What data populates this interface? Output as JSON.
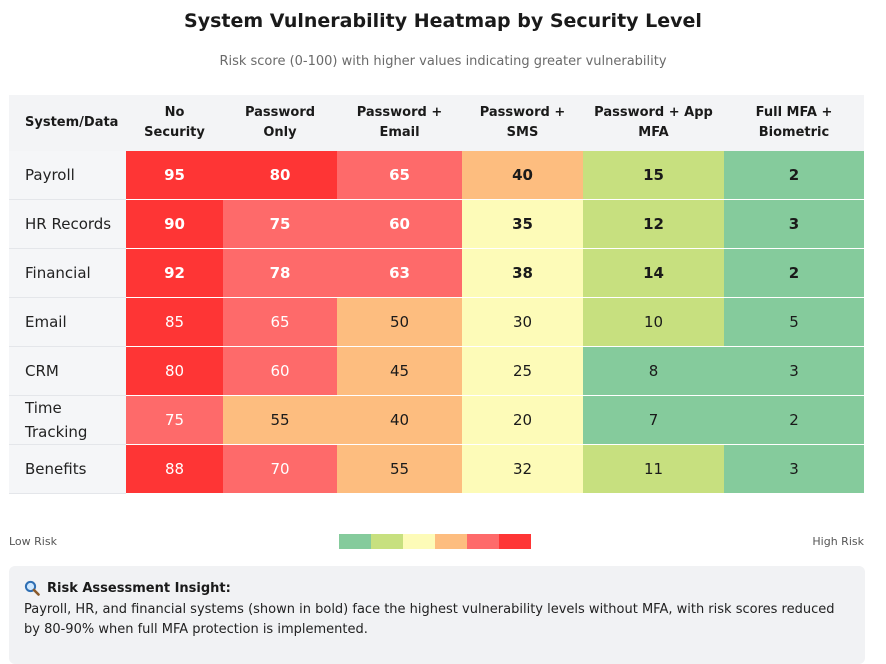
{
  "chart_data": {
    "type": "heatmap",
    "title": "System Vulnerability Heatmap by Security Level",
    "subtitle": "Risk score (0-100) with higher values indicating greater vulnerability",
    "corner_label": "System/Data",
    "columns": [
      [
        "No",
        "Security"
      ],
      [
        "Password",
        "Only"
      ],
      [
        "Password +",
        "Email"
      ],
      [
        "Password +",
        "SMS"
      ],
      [
        "Password + App",
        "MFA"
      ],
      [
        "Full MFA +",
        "Biometric"
      ]
    ],
    "rows": [
      {
        "label": [
          "Payroll"
        ],
        "values": [
          95,
          80,
          65,
          40,
          15,
          2
        ],
        "emphasis": true
      },
      {
        "label": [
          "HR Records"
        ],
        "values": [
          90,
          75,
          60,
          35,
          12,
          3
        ],
        "emphasis": true
      },
      {
        "label": [
          "Financial"
        ],
        "values": [
          92,
          78,
          63,
          38,
          14,
          2
        ],
        "emphasis": true
      },
      {
        "label": [
          "Email"
        ],
        "values": [
          85,
          65,
          50,
          30,
          10,
          5
        ],
        "emphasis": false
      },
      {
        "label": [
          "CRM"
        ],
        "values": [
          80,
          60,
          45,
          25,
          8,
          3
        ],
        "emphasis": false
      },
      {
        "label": [
          "Time",
          "Tracking"
        ],
        "values": [
          75,
          55,
          40,
          20,
          7,
          2
        ],
        "emphasis": false
      },
      {
        "label": [
          "Benefits"
        ],
        "values": [
          88,
          70,
          55,
          32,
          11,
          3
        ],
        "emphasis": false
      }
    ],
    "color_scale": [
      {
        "min": 0,
        "max": 9,
        "color": "#85cb9c"
      },
      {
        "min": 10,
        "max": 19,
        "color": "#c7e07f"
      },
      {
        "min": 20,
        "max": 39,
        "color": "#fdfbb8"
      },
      {
        "min": 40,
        "max": 59,
        "color": "#fdbd7f"
      },
      {
        "min": 60,
        "max": 79,
        "color": "#fe6a6a"
      },
      {
        "min": 80,
        "max": 100,
        "color": "#fe3535"
      }
    ],
    "legend": {
      "low_label": "Low Risk",
      "high_label": "High Risk"
    }
  },
  "insight": {
    "icon": "magnifier-icon",
    "heading": "Risk Assessment Insight:",
    "body": "Payroll, HR, and financial systems (shown in bold) face the highest vulnerability levels without MFA, with risk scores reduced by 80-90% when full MFA protection is implemented."
  }
}
